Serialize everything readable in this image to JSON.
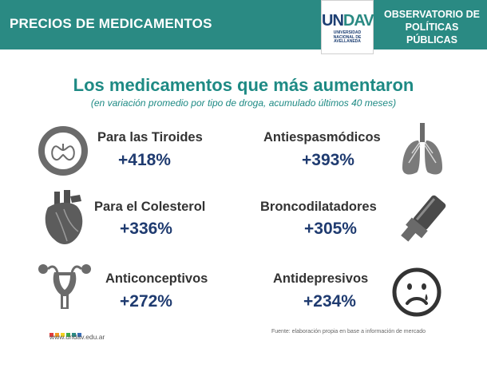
{
  "header": {
    "title": "PRECIOS DE MEDICAMENTOS",
    "logo_text_left": "UN",
    "logo_text_right": "DAV",
    "logo_subtitle": [
      "UNIVERSIDAD",
      "NACIONAL DE",
      "AVELLANEDA"
    ],
    "observatory_line1": "OBSERVATORIO DE",
    "observatory_line2": "POLÍTICAS PÚBLICAS"
  },
  "headline": "Los medicamentos que más aumentaron",
  "subheadline": "(en variación promedio por tipo de droga, acumulado últimos 40 meses)",
  "items": [
    {
      "name": "Para las Tiroides",
      "value": "+418%",
      "icon": "thyroid-icon"
    },
    {
      "name": "Antiespasmódicos",
      "value": "+393%",
      "icon": "lungs-icon"
    },
    {
      "name": "Para el Colesterol",
      "value": "+336%",
      "icon": "heart-icon"
    },
    {
      "name": "Broncodilatadores",
      "value": "+305%",
      "icon": "inhaler-icon"
    },
    {
      "name": "Anticonceptivos",
      "value": "+272%",
      "icon": "uterus-icon"
    },
    {
      "name": "Antidepresivos",
      "value": "+234%",
      "icon": "sad-face-icon"
    }
  ],
  "footer": {
    "url": "www.undav.edu.ar",
    "source": "Fuente: elaboración propia en base a información de mercado",
    "dot_colors": [
      "#e23b3b",
      "#f29a1f",
      "#f5d21f",
      "#3aaa4a",
      "#2a8a83",
      "#3a6fb8"
    ]
  },
  "colors": {
    "banner": "#2a8a83",
    "headline": "#1e8a84",
    "value": "#1f3b70"
  }
}
